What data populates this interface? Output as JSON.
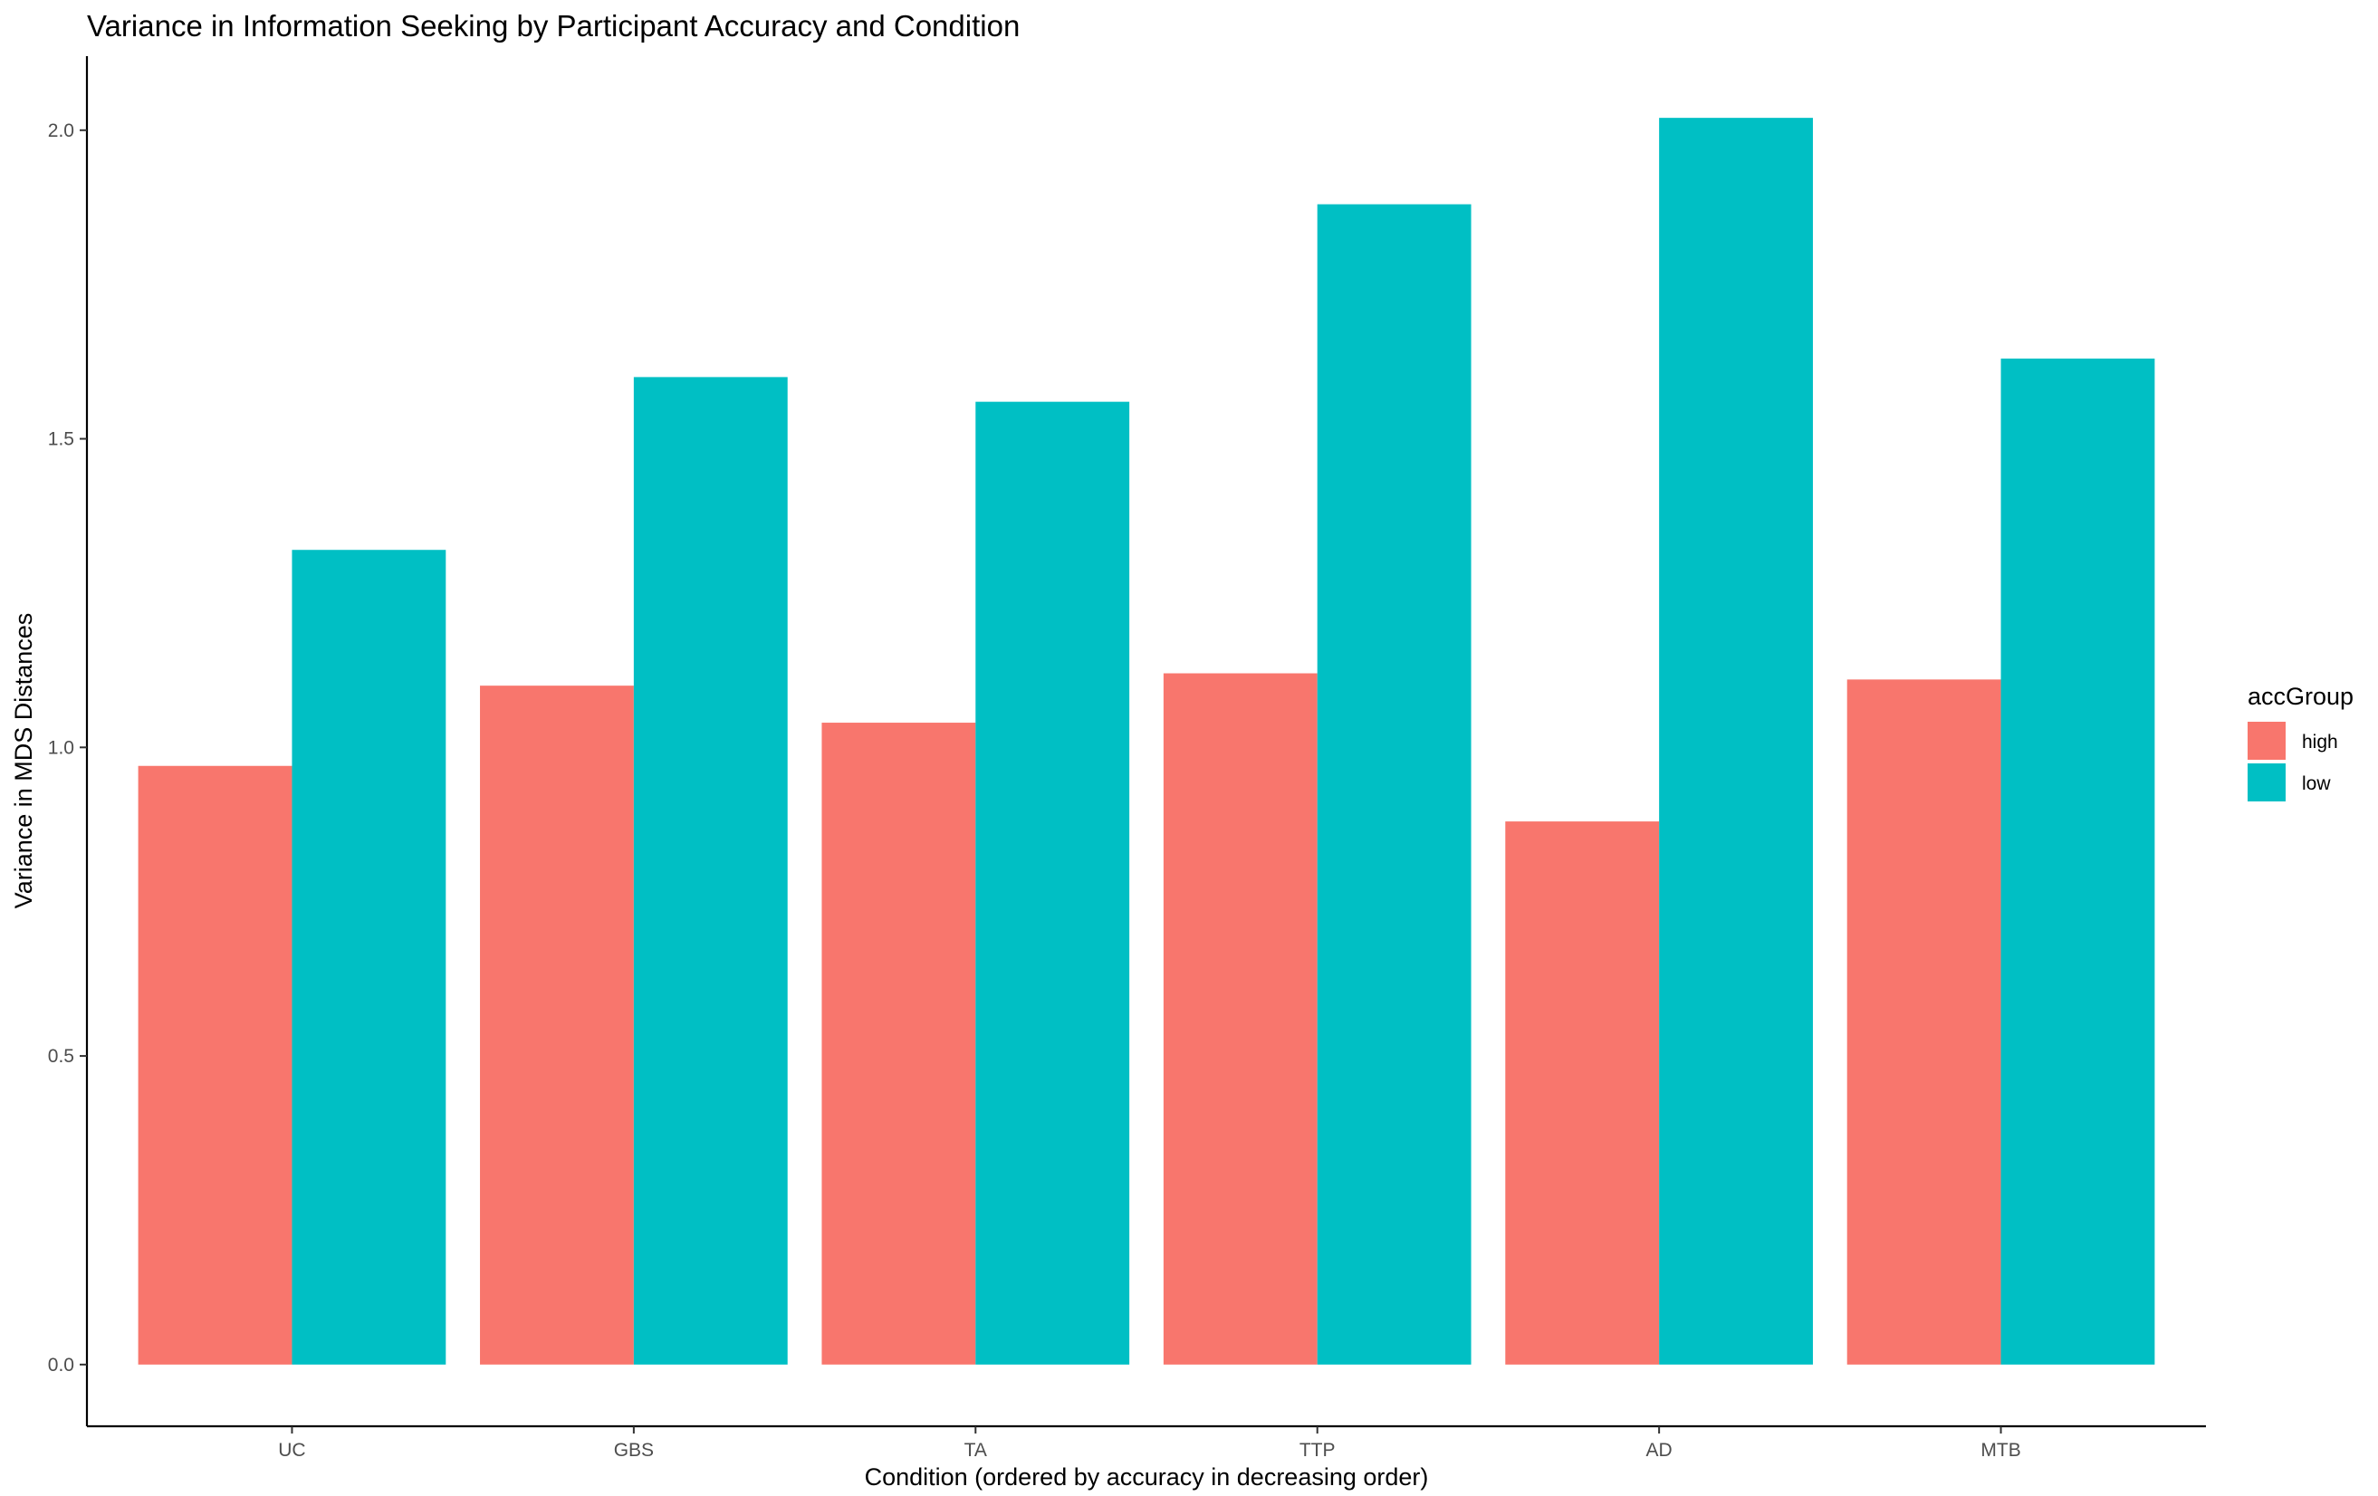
{
  "chart_data": {
    "type": "bar",
    "title": "Variance in Information Seeking by Participant Accuracy and Condition",
    "xlabel": "Condition (ordered by accuracy in decreasing order)",
    "ylabel": "Variance in MDS Distances",
    "categories": [
      "UC",
      "GBS",
      "TA",
      "TTP",
      "AD",
      "MTB"
    ],
    "series": [
      {
        "name": "high",
        "color": "#F8766D",
        "values": [
          0.97,
          1.1,
          1.04,
          1.12,
          0.88,
          1.11
        ]
      },
      {
        "name": "low",
        "color": "#00BFC4",
        "values": [
          1.32,
          1.6,
          1.56,
          1.88,
          2.02,
          1.63
        ]
      }
    ],
    "ylim": [
      -0.1,
      2.12
    ],
    "yticks": [
      0.0,
      0.5,
      1.0,
      1.5,
      2.0
    ],
    "ytick_labels": [
      "0.0",
      "0.5",
      "1.0",
      "1.5",
      "2.0"
    ],
    "grid": false,
    "legend": {
      "title": "accGroup",
      "position": "right",
      "entries": [
        "high",
        "low"
      ]
    }
  }
}
